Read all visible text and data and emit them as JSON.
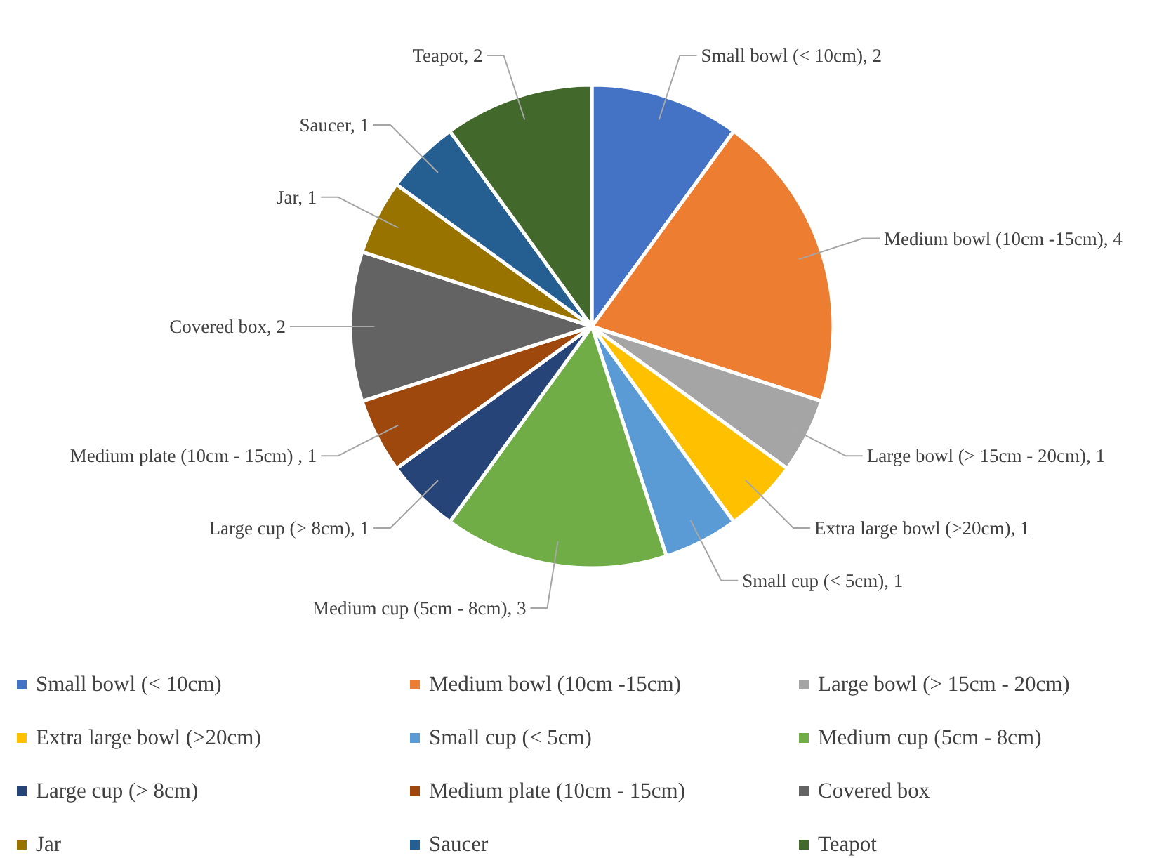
{
  "chart_data": {
    "type": "pie",
    "categories": [
      "Small bowl (< 10cm)",
      "Medium bowl (10cm -15cm)",
      "Large bowl (> 15cm - 20cm)",
      "Extra large bowl (>20cm)",
      "Small cup (< 5cm)",
      "Medium cup (5cm - 8cm)",
      "Large cup (> 8cm)",
      "Medium plate (10cm - 15cm)",
      "Covered box",
      "Jar",
      "Saucer",
      "Teapot"
    ],
    "values": [
      2,
      4,
      1,
      1,
      1,
      3,
      1,
      1,
      2,
      1,
      1,
      2
    ],
    "value_labels": [
      "Small bowl (< 10cm), 2",
      "Medium bowl (10cm -15cm), 4",
      "Large bowl (> 15cm - 20cm), 1",
      "Extra large bowl (>20cm), 1",
      "Small cup (< 5cm), 1",
      "Medium cup (5cm - 8cm), 3",
      "Large cup (> 8cm), 1",
      "Medium plate (10cm - 15cm) , 1",
      "Covered box, 2",
      "Jar, 1",
      "Saucer, 1",
      "Teapot, 2"
    ],
    "colors": [
      "#4472c4",
      "#ed7d31",
      "#a5a5a5",
      "#ffc000",
      "#5b9bd5",
      "#70ad47",
      "#264478",
      "#9e480e",
      "#636363",
      "#997300",
      "#255e91",
      "#43682b"
    ],
    "legend": "bottom"
  }
}
